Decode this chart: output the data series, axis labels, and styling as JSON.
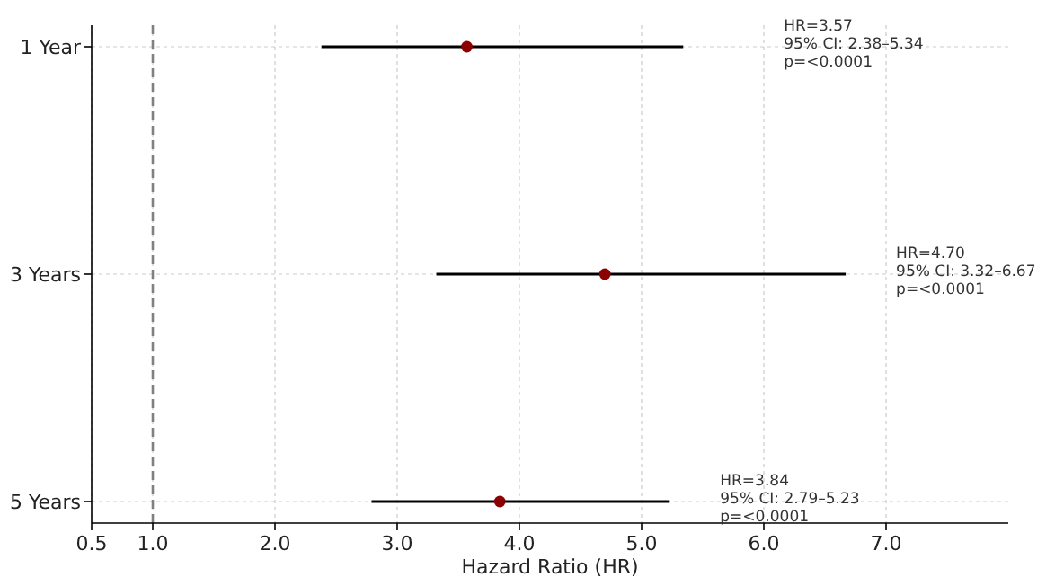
{
  "chart_data": {
    "type": "scatter",
    "orientation": "horizontal",
    "xlabel": "Hazard Ratio (HR)",
    "categories": [
      "1 Year",
      "3 Years",
      "5 Years"
    ],
    "values": [
      3.57,
      4.7,
      3.84
    ],
    "errors": [
      [
        2.38,
        5.34
      ],
      [
        3.32,
        6.67
      ],
      [
        2.79,
        5.23
      ]
    ],
    "color": "#8b0000",
    "marker": "circle",
    "grid": true,
    "xlim": [
      0.5,
      8.0
    ],
    "xticks": [
      0.5,
      {
        "value": 1,
        "label": "1.0"
      },
      {
        "value": 2,
        "label": "2.0"
      },
      {
        "value": 3,
        "label": "3.0"
      },
      {
        "value": 4,
        "label": "4.0"
      },
      {
        "value": 5,
        "label": "5.0"
      },
      {
        "value": 6,
        "label": "6.0"
      },
      {
        "value": 7,
        "label": "7.0"
      }
    ],
    "ref_lines": [
      {
        "axis": "x",
        "value": 1.0,
        "color": "#808080",
        "line_style": "dashed"
      }
    ],
    "annotations": [
      "HR=3.57\n95% CI: 2.38–5.34\np=<0.0001",
      "HR=4.70\n95% CI: 3.32–6.67\np=<0.0001",
      "HR=3.84\n95% CI: 2.79–5.23\np=<0.0001"
    ]
  }
}
